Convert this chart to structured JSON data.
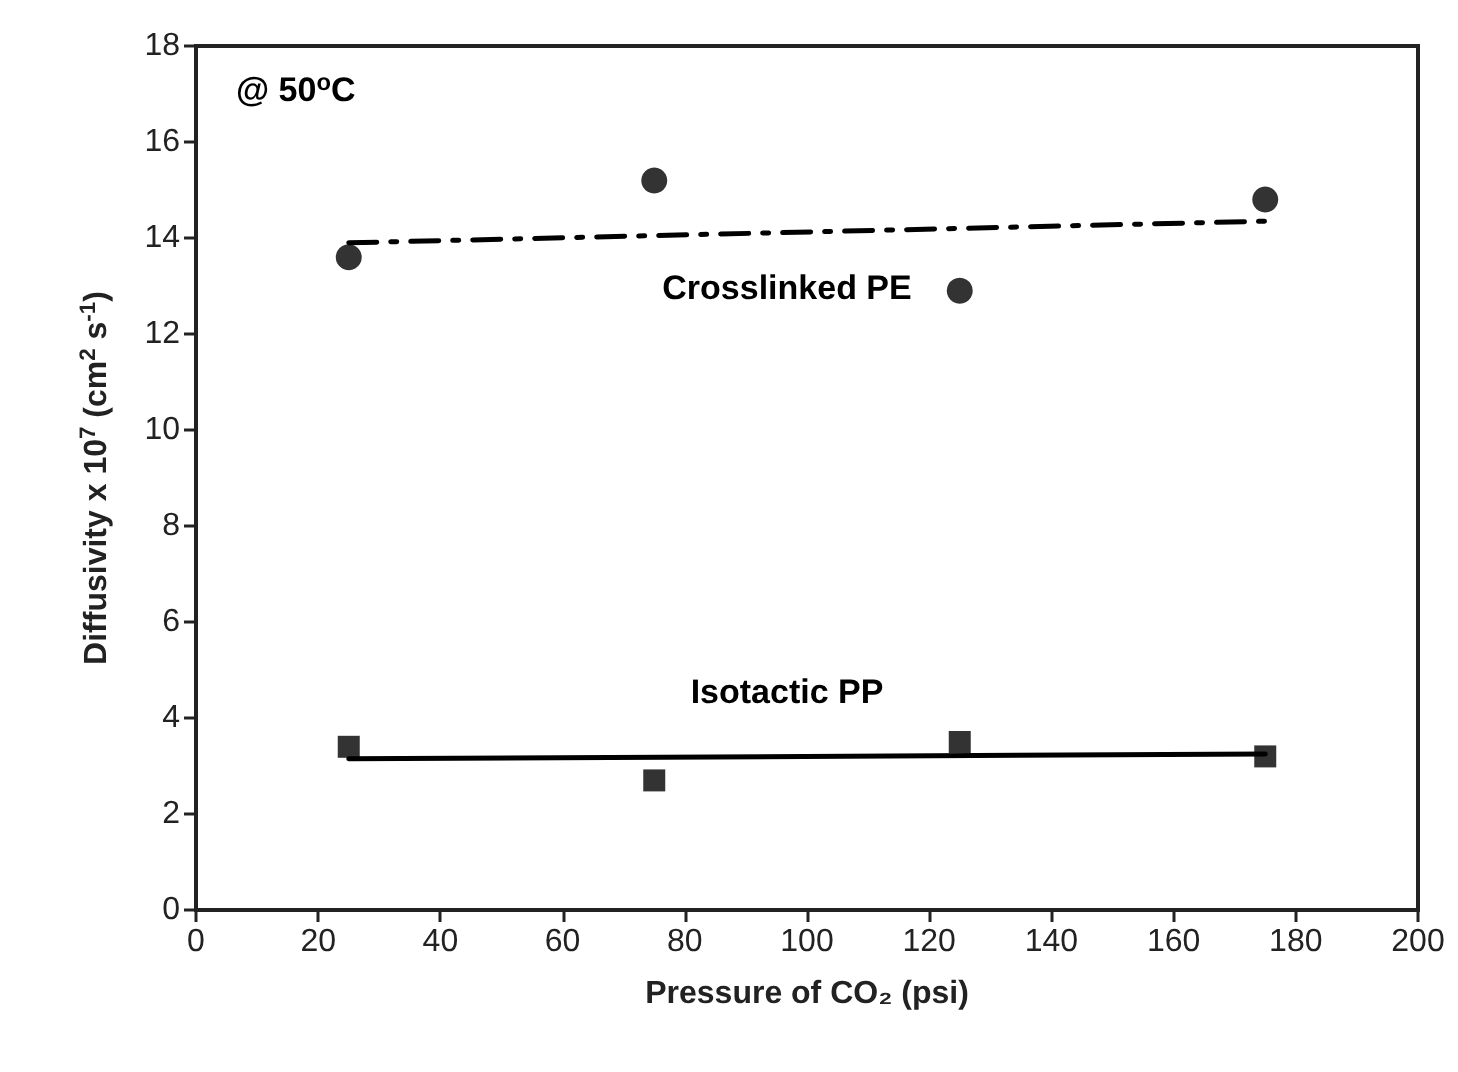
{
  "chart_data": {
    "type": "scatter",
    "xlabel": "Pressure of CO₂ (psi)",
    "ylabel": "Diffusivity x 10$^{7}$ (cm$^{2}$ s$^{-1}$)",
    "annotations": [
      "@ 50$^{o}$C"
    ],
    "xlim": [
      0,
      200
    ],
    "xticks": [
      0,
      20,
      40,
      60,
      80,
      100,
      120,
      140,
      160,
      180,
      200
    ],
    "ylim": [
      0,
      18
    ],
    "yticks": [
      0,
      2,
      4,
      6,
      8,
      10,
      12,
      14,
      16,
      18
    ],
    "grid": false,
    "legend": false,
    "series": [
      {
        "name": "Crosslinked PE",
        "marker": "circle",
        "color": "#000000",
        "x": [
          25,
          75,
          125,
          175
        ],
        "values": [
          13.6,
          15.2,
          12.9,
          14.8
        ]
      },
      {
        "name": "Isotactic PP",
        "marker": "square",
        "color": "#000000",
        "x": [
          25,
          75,
          125,
          175
        ],
        "values": [
          3.4,
          2.7,
          3.5,
          3.2
        ]
      },
      {
        "type": "line",
        "line_style": "dashed",
        "marker": "none",
        "color": "#000000",
        "x": [
          25,
          175
        ],
        "values": [
          13.9,
          14.35
        ]
      },
      {
        "type": "line",
        "line_style": "solid",
        "marker": "none",
        "color": "#000000",
        "x": [
          25,
          175
        ],
        "values": [
          3.15,
          3.25
        ]
      }
    ]
  }
}
